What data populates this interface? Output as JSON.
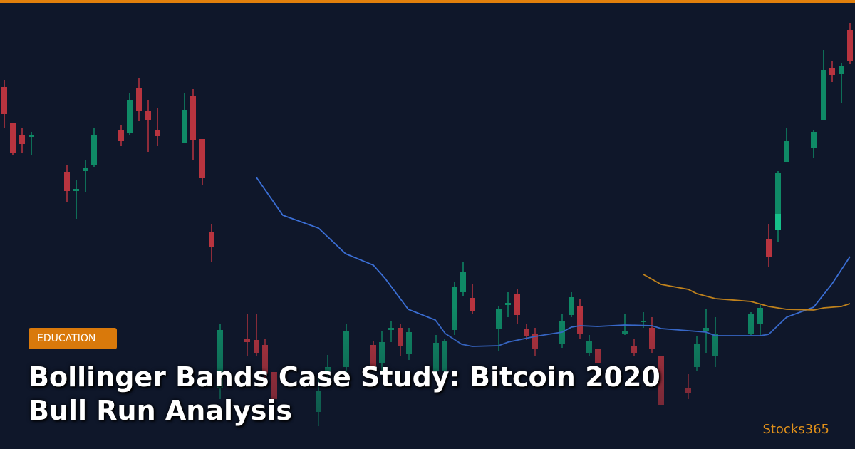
{
  "badge": "EDUCATION",
  "title": {
    "line1": "Bollinger Bands Case Study: Bitcoin 2020",
    "line2": "Bull Run Analysis"
  },
  "brand": "Stocks365"
}
